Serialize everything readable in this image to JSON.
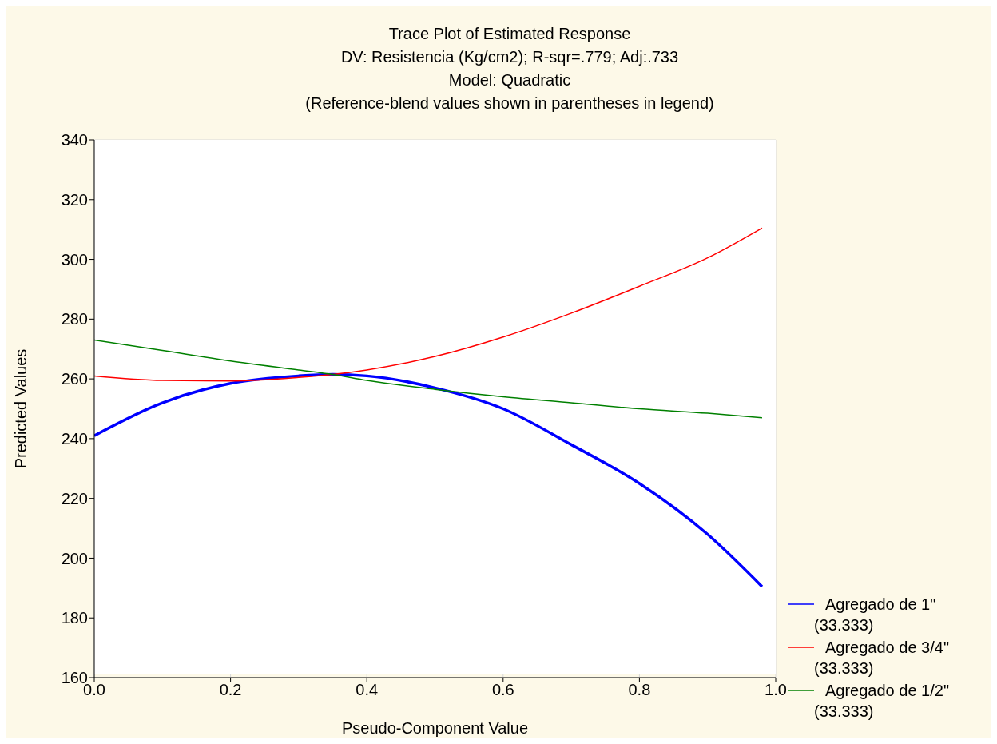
{
  "chart_data": {
    "type": "line",
    "title": "Trace Plot of Estimated Response",
    "subtitle": "DV: Resistencia (Kg/cm2); R-sqr=.779; Adj:.733\nModel: Quadratic\n(Reference-blend values shown in parentheses in legend)",
    "xlabel": "Pseudo-Component Value",
    "ylabel": "Predicted Values",
    "x": [
      0,
      0.1,
      0.2,
      0.3,
      0.35,
      0.4,
      0.5,
      0.6,
      0.7,
      0.8,
      0.9,
      0.98
    ],
    "series": [
      {
        "name": "Agregado de 1\"\n(33.333)",
        "color": "#0000ff",
        "values": [
          241,
          252,
          258.5,
          261,
          261.5,
          261,
          257,
          250,
          238,
          225,
          208,
          190.5
        ]
      },
      {
        "name": "Agregado de 3/4\"\n(33.333)",
        "color": "#ff0000",
        "values": [
          261,
          259.5,
          259.3,
          260.5,
          261.5,
          263,
          267.5,
          274,
          282,
          291,
          300.5,
          310.5
        ]
      },
      {
        "name": "Agregado de 1/2\"\n(33.333)",
        "color": "#008000",
        "values": [
          273,
          269.5,
          266,
          263,
          261.5,
          259.5,
          256.5,
          254,
          252,
          250,
          248.5,
          247
        ]
      }
    ],
    "xlim": [
      0,
      1
    ],
    "xticks": [
      {
        "value": 0,
        "label": "0.0"
      },
      {
        "value": 0.2,
        "label": "0.2"
      },
      {
        "value": 0.4,
        "label": "0.4"
      },
      {
        "value": 0.6,
        "label": "0.6"
      },
      {
        "value": 0.8,
        "label": "0.8"
      },
      {
        "value": 1,
        "label": "1.0"
      }
    ],
    "ylim": [
      160,
      340
    ],
    "yticks": [
      160,
      180,
      200,
      220,
      240,
      260,
      280,
      300,
      320,
      340
    ],
    "grid": true,
    "legend": "bottom right",
    "marker": "none",
    "line_style": "solid"
  }
}
